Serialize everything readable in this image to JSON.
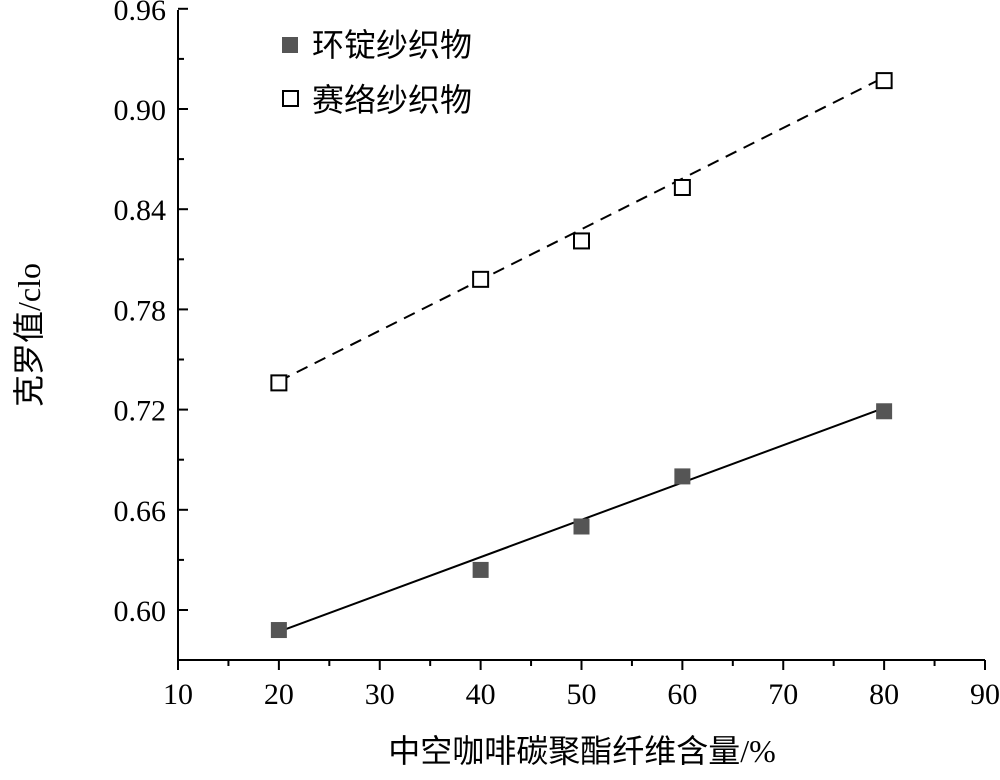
{
  "chart_data": {
    "type": "scatter",
    "title": "",
    "xlabel": "中空咖啡碳聚酯纤维含量/%",
    "ylabel": "克罗值/clo",
    "xlim": [
      10,
      90
    ],
    "ylim": [
      0.57,
      0.96
    ],
    "x_ticks": [
      "10",
      "20",
      "30",
      "40",
      "50",
      "60",
      "70",
      "80",
      "90"
    ],
    "y_ticks": [
      "0.60",
      "0.66",
      "0.72",
      "0.78",
      "0.84",
      "0.90",
      "0.96"
    ],
    "grid": false,
    "legend_position": "top-left",
    "series": [
      {
        "name": "环锭纱织物",
        "marker": "filled-square",
        "color": "#555555",
        "x": [
          20,
          40,
          50,
          60,
          80
        ],
        "values": [
          0.588,
          0.624,
          0.65,
          0.68,
          0.719
        ],
        "fit_line": {
          "style": "solid",
          "x": [
            20,
            80
          ],
          "y": [
            0.587,
            0.721
          ]
        }
      },
      {
        "name": "赛络纱织物",
        "marker": "open-square",
        "color": "#000000",
        "x": [
          20,
          40,
          50,
          60,
          80
        ],
        "values": [
          0.736,
          0.798,
          0.821,
          0.853,
          0.917
        ],
        "fit_line": {
          "style": "dashed",
          "x": [
            20,
            80
          ],
          "y": [
            0.737,
            0.919
          ]
        }
      }
    ]
  }
}
